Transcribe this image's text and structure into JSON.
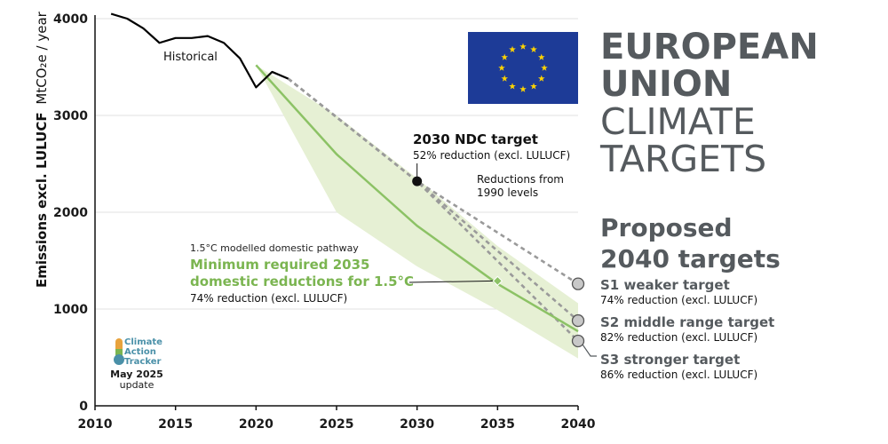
{
  "chart_data": {
    "type": "line",
    "ylabel_bold": "Emissions excl. LULUCF",
    "ylabel_unit": "MtCO₂e / year",
    "xlim": [
      2010,
      2040
    ],
    "ylim": [
      0,
      4000
    ],
    "x_ticks": [
      "2010",
      "2015",
      "2020",
      "2025",
      "2030",
      "2035",
      "2040"
    ],
    "y_ticks": [
      "0",
      "1000",
      "2000",
      "3000",
      "4000"
    ],
    "historical": {
      "label": "Historical",
      "x": [
        2011,
        2012,
        2013,
        2014,
        2015,
        2016,
        2017,
        2018,
        2019,
        2020,
        2021,
        2022
      ],
      "y": [
        4050,
        4000,
        3900,
        3750,
        3800,
        3800,
        3820,
        3750,
        3590,
        3290,
        3450,
        3380
      ]
    },
    "pathway_15c": {
      "label": "1.5°C modelled domestic pathway",
      "x": [
        2020,
        2025,
        2030,
        2035,
        2040
      ],
      "median": [
        3520,
        2600,
        1860,
        1260,
        770
      ],
      "upper": [
        3520,
        3000,
        2350,
        1650,
        1060
      ],
      "lower": [
        3520,
        2000,
        1440,
        990,
        490
      ]
    },
    "ndc_2030": {
      "x": 2030,
      "y": 2320,
      "title": "2030 NDC target",
      "detail": "52% reduction (excl. LULUCF)"
    },
    "reductions_note": [
      "Reductions from",
      "1990 levels"
    ],
    "min_2035": {
      "x": 2035,
      "y": 1290,
      "title_lines": [
        "Minimum required 2035",
        "domestic reductions for 1.5°C"
      ],
      "detail": "74% reduction (excl. LULUCF)"
    },
    "targets_2040": [
      {
        "name": "S1 weaker target",
        "detail": "74% reduction (excl. LULUCF)",
        "y": 1260
      },
      {
        "name": "S2 middle range target",
        "detail": "82% reduction (excl. LULUCF)",
        "y": 880
      },
      {
        "name": "S3 stronger target",
        "detail": "86% reduction (excl. LULUCF)",
        "y": 670
      }
    ]
  },
  "title": {
    "line1": "EUROPEAN",
    "line2": "UNION",
    "line3": "CLIMATE",
    "line4": "TARGETS"
  },
  "proposed": {
    "line1": "Proposed",
    "line2": "2040 targets"
  },
  "source": {
    "logo_lines": [
      "Climate",
      "Action",
      "Tracker"
    ],
    "date_line1": "May 2025",
    "date_line2": "update"
  },
  "colors": {
    "historical": "#000000",
    "pathway": "#8cc265",
    "pathway_band": "#e6f0d4",
    "projection": "#9a9a9a",
    "heading_grey": "#555a5e",
    "flag_blue": "#1d3b97",
    "flag_star": "#ffd400",
    "target_marker": "#c8c8c8"
  }
}
